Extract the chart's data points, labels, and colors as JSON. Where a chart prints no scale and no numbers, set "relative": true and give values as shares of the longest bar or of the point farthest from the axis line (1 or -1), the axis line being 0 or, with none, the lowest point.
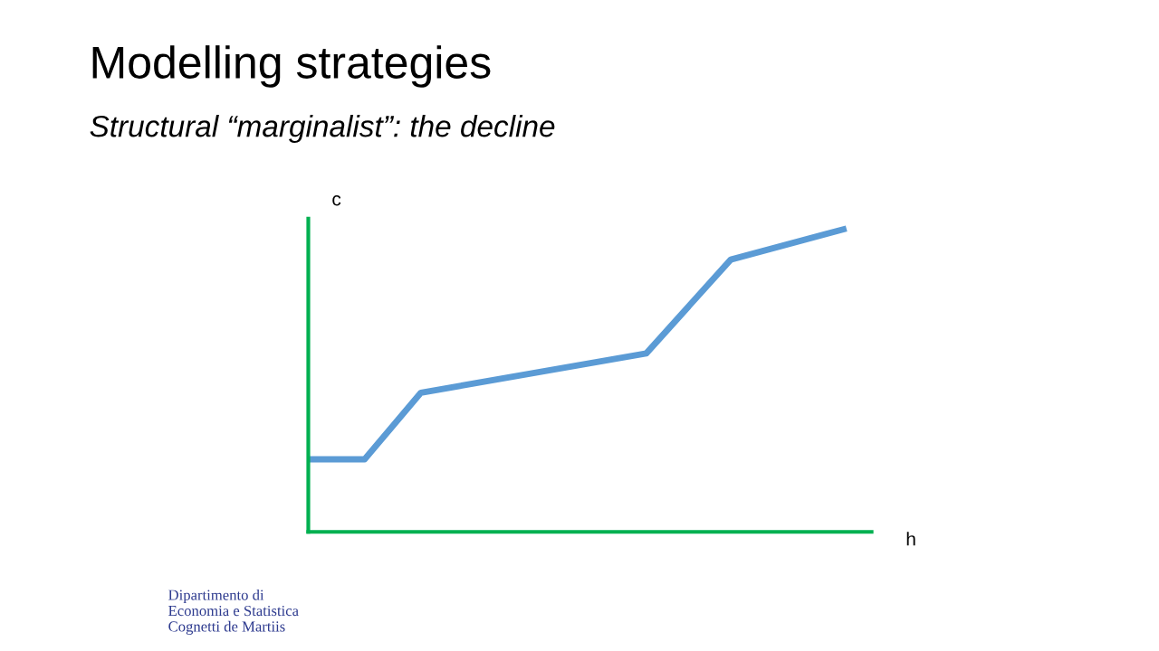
{
  "chart_data": {
    "type": "line",
    "title": "Modelling strategies",
    "subtitle": "Structural “marginalist”: the decline",
    "xlabel": "h",
    "ylabel": "c",
    "relative": true,
    "tick_labels": false,
    "categories": [
      null,
      null,
      null,
      null,
      null,
      null,
      null,
      null,
      null,
      null,
      null,
      null,
      null,
      null,
      null,
      null,
      null,
      null,
      null,
      null,
      null
    ],
    "series": [
      {
        "color": "#5b9bd5",
        "values": [
          0.24,
          null,
          0.24,
          null,
          0.46,
          null,
          null,
          null,
          null,
          null,
          null,
          null,
          0.59,
          null,
          null,
          0.9,
          null,
          null,
          null,
          1.0,
          null
        ]
      }
    ],
    "annotations": [
      "Dipartimento di\nEconomia e Statistica\nCognetti de Martiis"
    ]
  }
}
